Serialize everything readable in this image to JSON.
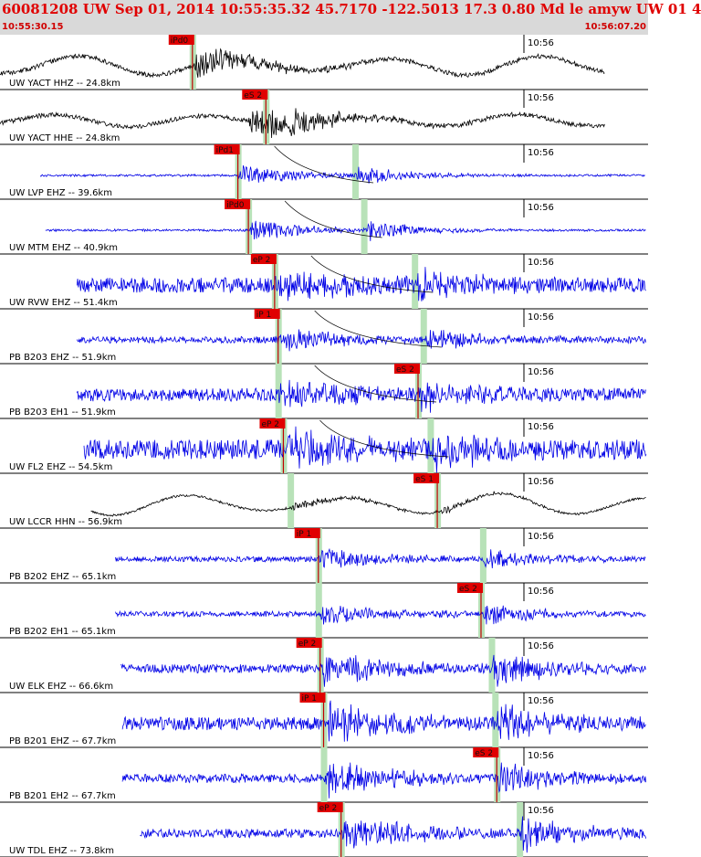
{
  "header": {
    "title": "60081208 UW Sep 01, 2014 10:55:35.32    45.7170  -122.5013 17.3 0.80 Md le amyw UW 01    4",
    "time_start": "10:55:30.15",
    "time_end": "10:56:07.20"
  },
  "chart_data": {
    "type": "line",
    "x_unit": "time",
    "x_range": [
      "10:55:30.15",
      "10:56:07.20"
    ],
    "minute_mark_label": "10:56",
    "traces": [
      {
        "label": "UW YACT HHZ -- 24.8km",
        "color": "#000000",
        "pick": "iPd0",
        "pick_t": 11.0,
        "s_pick": null,
        "s_t": null,
        "wave_start": 0.0,
        "wave_end": 34.6,
        "noise": 0.1,
        "burst": 0.75,
        "swing": 0.45,
        "seed": 11
      },
      {
        "label": "UW YACT HHE -- 24.8km",
        "color": "#000000",
        "pick": null,
        "pick_t": null,
        "s_pick": "eS 2",
        "s_t": 15.2,
        "wave_start": 0.0,
        "wave_end": 34.6,
        "noise": 0.1,
        "burst": 0.7,
        "swing": 0.28,
        "seed": 12
      },
      {
        "label": "UW LVP EHZ -- 39.6km",
        "color": "#0000e6",
        "pick": "iPd1",
        "pick_t": 13.6,
        "s_pick": null,
        "s_t": 20.3,
        "wave_start": 2.3,
        "wave_end": 36.9,
        "noise": 0.05,
        "burst": 0.5,
        "swing": 0.0,
        "seed": 13
      },
      {
        "label": "UW MTM EHZ -- 40.9km",
        "color": "#0000e6",
        "pick": "iPd0",
        "pick_t": 14.2,
        "s_pick": null,
        "s_t": 20.8,
        "wave_start": 2.6,
        "wave_end": 37.2,
        "noise": 0.05,
        "burst": 0.5,
        "swing": 0.0,
        "seed": 14
      },
      {
        "label": "UW RVW EHZ -- 51.4km",
        "color": "#0000e6",
        "pick": "eP 2",
        "pick_t": 15.7,
        "s_pick": null,
        "s_t": 23.7,
        "wave_start": 4.4,
        "wave_end": 39.0,
        "noise": 0.35,
        "burst": 0.75,
        "swing": 0.0,
        "seed": 15
      },
      {
        "label": "PB B203 EHZ -- 51.9km",
        "color": "#0000e6",
        "pick": "iP 1",
        "pick_t": 15.9,
        "s_pick": null,
        "s_t": 24.2,
        "wave_start": 4.4,
        "wave_end": 39.0,
        "noise": 0.15,
        "burst": 0.55,
        "swing": 0.0,
        "seed": 16
      },
      {
        "label": "PB B203 EH1 -- 51.9km",
        "color": "#0000e6",
        "pick": null,
        "pick_t": 15.9,
        "s_pick": "eS 2",
        "s_t": 23.9,
        "wave_start": 4.4,
        "wave_end": 39.0,
        "noise": 0.3,
        "burst": 0.75,
        "swing": 0.0,
        "seed": 17
      },
      {
        "label": "UW FL2 EHZ -- 54.5km",
        "color": "#0000e6",
        "pick": "eP 2",
        "pick_t": 16.2,
        "s_pick": null,
        "s_t": 24.6,
        "wave_start": 4.8,
        "wave_end": 39.3,
        "noise": 0.45,
        "burst": 0.85,
        "swing": 0.0,
        "seed": 18
      },
      {
        "label": "UW LCCR HHN -- 56.9km",
        "color": "#000000",
        "pick": null,
        "pick_t": 16.6,
        "s_pick": "eS 1",
        "s_t": 25.0,
        "wave_start": 5.2,
        "wave_end": 39.7,
        "noise": 0.05,
        "burst": 0.2,
        "swing": 0.5,
        "seed": 19
      },
      {
        "label": "PB B202 EHZ -- 65.1km",
        "color": "#0000e6",
        "pick": "iP 1",
        "pick_t": 18.2,
        "s_pick": null,
        "s_t": 27.6,
        "wave_start": 6.6,
        "wave_end": 41.1,
        "noise": 0.12,
        "burst": 0.5,
        "swing": 0.0,
        "seed": 20
      },
      {
        "label": "PB B202 EH1 -- 65.1km",
        "color": "#0000e6",
        "pick": null,
        "pick_t": 18.2,
        "s_pick": "eS 2",
        "s_t": 27.5,
        "wave_start": 6.6,
        "wave_end": 41.1,
        "noise": 0.12,
        "burst": 0.55,
        "swing": 0.0,
        "seed": 21
      },
      {
        "label": "UW ELK EHZ -- 66.6km",
        "color": "#0000e6",
        "pick": "eP 2",
        "pick_t": 18.3,
        "s_pick": null,
        "s_t": 28.1,
        "wave_start": 6.9,
        "wave_end": 41.3,
        "noise": 0.2,
        "burst": 0.9,
        "swing": 0.0,
        "seed": 22
      },
      {
        "label": "PB B201 EHZ -- 67.7km",
        "color": "#0000e6",
        "pick": "iP 1",
        "pick_t": 18.5,
        "s_pick": null,
        "s_t": 28.3,
        "wave_start": 7.0,
        "wave_end": 41.5,
        "noise": 0.3,
        "burst": 0.9,
        "swing": 0.0,
        "seed": 23
      },
      {
        "label": "PB B201 EH2 -- 67.7km",
        "color": "#0000e6",
        "pick": null,
        "pick_t": 18.5,
        "s_pick": "eS 2",
        "s_t": 28.4,
        "wave_start": 7.0,
        "wave_end": 41.5,
        "noise": 0.2,
        "burst": 0.9,
        "swing": 0.0,
        "seed": 24
      },
      {
        "label": "UW TDL EHZ -- 73.8km",
        "color": "#0000e6",
        "pick": "eP 2",
        "pick_t": 19.5,
        "s_pick": null,
        "s_t": 29.7,
        "wave_start": 8.0,
        "wave_end": 42.0,
        "noise": 0.2,
        "burst": 0.9,
        "swing": 0.0,
        "seed": 25
      }
    ]
  }
}
